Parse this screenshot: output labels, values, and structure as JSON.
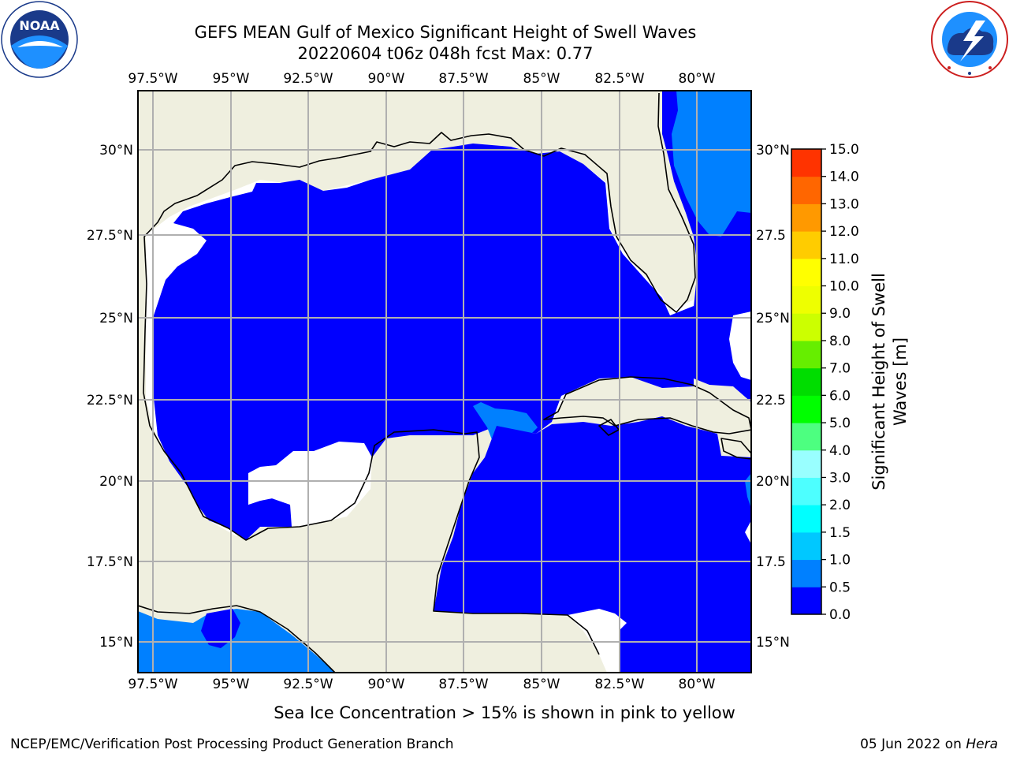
{
  "header": {
    "title_line1": "GEFS MEAN Gulf of Mexico Significant Height of Swell Waves",
    "title_line2": "20220604 t06z 048h fcst   Max: 0.77"
  },
  "logos": {
    "noaa_text": "NOAA",
    "noaa_ring_text": "NATIONAL OCEANIC AND ATMOSPHERIC ADMINISTRATION · U.S. DEPARTMENT OF COMMERCE ·",
    "nws_ring_text": "NATIONAL WEATHER SERVICE"
  },
  "map": {
    "lon_ticks": [
      "97.5°W",
      "95°W",
      "92.5°W",
      "90°W",
      "87.5°W",
      "85°W",
      "82.5°W",
      "80°W"
    ],
    "lat_ticks_left": [
      "30°N",
      "27.5°N",
      "25°N",
      "22.5°N",
      "20°N",
      "17.5°N",
      "15°N"
    ],
    "lat_ticks_right": [
      "30°N",
      "27.5",
      "25°N",
      "22.5",
      "20°N",
      "17.5",
      "15°N"
    ],
    "colors": {
      "land": "#efefdf",
      "swell_0_0p5": "#0000ff",
      "swell_0p5_1": "#0080ff",
      "no_data": "#ffffff",
      "coastline": "#000000",
      "grid": "#b0b0b0"
    }
  },
  "colorbar": {
    "label": "Significant Height of Swell Waves [m]",
    "label_line1": "Significant Height of Swell",
    "label_line2": "Waves [m]",
    "tick_labels": [
      "0.0",
      "0.5",
      "1.0",
      "1.5",
      "2.0",
      "3.0",
      "4.0",
      "5.0",
      "6.0",
      "7.0",
      "8.0",
      "9.0",
      "10.0",
      "11.0",
      "12.0",
      "13.0",
      "14.0",
      "15.0"
    ],
    "colors": [
      "#0000ff",
      "#0080ff",
      "#00c8ff",
      "#00ffff",
      "#4dffff",
      "#99ffff",
      "#4dff80",
      "#00ff00",
      "#00dd00",
      "#66ee00",
      "#ccff00",
      "#eeff00",
      "#ffff00",
      "#ffcc00",
      "#ff9900",
      "#ff6600",
      "#ff3300",
      "#ff0000"
    ]
  },
  "footer": {
    "ice_note": "Sea Ice Concentration > 15% is shown in pink to yellow",
    "left_credit": "NCEP/EMC/Verification Post Processing Product Generation Branch",
    "date_prefix": "05 Jun 2022 on ",
    "date_host": "Hera"
  }
}
